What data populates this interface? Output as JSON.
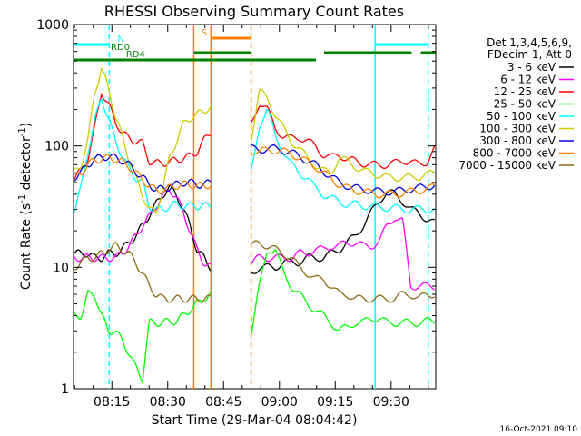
{
  "chart_data": {
    "type": "line",
    "title": "RHESSI Observing Summary Count Rates",
    "xlabel": "Start Time (29-Mar-04 08:04:42)",
    "ylabel_main": "Count Rate (s",
    "ylabel_sup1": "-1",
    "ylabel_mid": " detector",
    "ylabel_sup2": "-1",
    "ylabel_end": ")",
    "yscale": "log",
    "ylim": [
      1,
      1000
    ],
    "xlim_minutes": [
      484.7,
      582.0
    ],
    "xticks": [
      {
        "t": 495,
        "label": "08:15"
      },
      {
        "t": 510,
        "label": "08:30"
      },
      {
        "t": 525,
        "label": "08:45"
      },
      {
        "t": 540,
        "label": "09:00"
      },
      {
        "t": 555,
        "label": "09:15"
      },
      {
        "t": 570,
        "label": "09:30"
      }
    ],
    "yticks": [
      {
        "v": 1,
        "label": "1"
      },
      {
        "v": 10,
        "label": "10"
      },
      {
        "v": 100,
        "label": "100"
      },
      {
        "v": 1000,
        "label": "1000"
      }
    ],
    "legend_header": [
      "Det 1,3,4,5,6,9,",
      "FDecim 1, Att 0"
    ],
    "series": [
      {
        "name": "3 - 6 keV",
        "color": "#000000",
        "pre": [
          13,
          13,
          13,
          12,
          12,
          13,
          13,
          14,
          16,
          18,
          22,
          27,
          33,
          40,
          45,
          40,
          30,
          22,
          14,
          12,
          10
        ],
        "post": [
          9,
          10,
          10,
          10,
          11,
          11,
          11,
          12,
          12,
          12,
          13,
          14,
          16,
          18,
          22,
          28,
          35,
          42,
          40,
          35,
          30,
          28,
          25,
          23
        ]
      },
      {
        "name": "6 - 12 keV",
        "color": "#ff00ff",
        "pre": [
          12,
          12,
          12,
          12,
          12,
          12,
          12,
          13,
          15,
          18,
          22,
          26,
          32,
          38,
          44,
          38,
          28,
          20,
          14,
          11,
          10
        ],
        "post": [
          11,
          12,
          12,
          12,
          12,
          12,
          13,
          13,
          14,
          14,
          15,
          15,
          16,
          16,
          15,
          15,
          16,
          22,
          26,
          24,
          7,
          7,
          7,
          7
        ]
      },
      {
        "name": "12 - 25 keV",
        "color": "#ff0000",
        "pre": [
          55,
          62,
          80,
          140,
          280,
          220,
          160,
          130,
          115,
          110,
          105,
          75,
          72,
          72,
          74,
          76,
          80,
          82,
          90,
          110,
          130
        ],
        "post": [
          150,
          230,
          200,
          140,
          120,
          115,
          118,
          110,
          100,
          85,
          80,
          85,
          78,
          75,
          72,
          70,
          70,
          70,
          72,
          76,
          74,
          70,
          74,
          95
        ]
      },
      {
        "name": "25 - 50 keV",
        "color": "#00ff00",
        "pre": [
          4,
          4,
          6,
          6,
          4,
          3,
          3,
          2.5,
          2,
          1.5,
          1.2,
          3.5,
          3.5,
          3.5,
          3.6,
          3.6,
          4,
          4.5,
          5,
          5.5,
          6
        ],
        "post": [
          3,
          7,
          14,
          14,
          9,
          7,
          6,
          5,
          4.5,
          4,
          3.5,
          3,
          3.2,
          3.5,
          3.5,
          3.8,
          3.8,
          3.5,
          3.5,
          3.5,
          3.5,
          3.5,
          3.6,
          3.6
        ]
      },
      {
        "name": "50 - 100 keV",
        "color": "#00ffff",
        "pre": [
          30,
          45,
          90,
          160,
          250,
          170,
          110,
          85,
          65,
          55,
          50,
          32,
          30,
          30,
          32,
          33,
          32,
          32,
          32,
          32,
          32
        ],
        "post": [
          60,
          150,
          200,
          120,
          90,
          70,
          60,
          55,
          45,
          40,
          37,
          35,
          33,
          33,
          32,
          32,
          31,
          31,
          31,
          30,
          30,
          30,
          30,
          30
        ]
      },
      {
        "name": "100 - 300 keV",
        "color": "#cccc00",
        "pre": [
          60,
          70,
          110,
          280,
          430,
          300,
          180,
          120,
          80,
          55,
          40,
          30,
          28,
          45,
          80,
          110,
          150,
          170,
          180,
          195,
          210
        ],
        "post": [
          120,
          280,
          250,
          180,
          140,
          110,
          95,
          80,
          70,
          62,
          60,
          80,
          75,
          68,
          62,
          60,
          58,
          55,
          55,
          55,
          55,
          56,
          58,
          60
        ]
      },
      {
        "name": "300 - 800 keV",
        "color": "#0000dd",
        "pre": [
          55,
          60,
          70,
          78,
          80,
          82,
          80,
          76,
          70,
          62,
          55,
          48,
          44,
          44,
          46,
          48,
          50,
          50,
          48,
          48,
          50
        ],
        "post": [
          95,
          93,
          95,
          95,
          92,
          88,
          82,
          76,
          70,
          62,
          56,
          50,
          47,
          45,
          44,
          43,
          42,
          42,
          42,
          43,
          44,
          45,
          46,
          48
        ]
      },
      {
        "name": "800 - 7000 keV",
        "color": "#ff8000",
        "pre": [
          55,
          60,
          70,
          76,
          78,
          80,
          78,
          74,
          68,
          60,
          53,
          47,
          43,
          43,
          45,
          47,
          48,
          48,
          47,
          47,
          48
        ],
        "post": [
          92,
          90,
          92,
          92,
          90,
          86,
          80,
          74,
          68,
          60,
          54,
          48,
          45,
          43,
          42,
          41,
          40,
          40,
          40,
          41,
          42,
          43,
          44,
          46
        ]
      },
      {
        "name": "7000 - 15000 keV",
        "color": "#8b6914",
        "pre": [
          10,
          11,
          12,
          12,
          13,
          14,
          15,
          14,
          13,
          11,
          9,
          7,
          6,
          5.5,
          5.5,
          5.5,
          5.5,
          5.5,
          5.5,
          5.5,
          5.5
        ],
        "post": [
          15,
          16,
          15,
          14,
          13,
          12,
          10,
          9,
          8,
          8,
          7,
          6,
          6,
          5.5,
          5.5,
          5.5,
          5.5,
          5.5,
          5.5,
          6,
          6,
          5.5,
          6,
          6
        ]
      }
    ],
    "gap_minutes": [
      521.5,
      532.5
    ],
    "vertical_lines": [
      {
        "t": 494.3,
        "color": "#00ffff",
        "style": "dashed"
      },
      {
        "t": 517.0,
        "color": "#ff8000",
        "style": "solid"
      },
      {
        "t": 521.6,
        "color": "#ff8000",
        "style": "solid"
      },
      {
        "t": 532.4,
        "color": "#ff8000",
        "style": "dashed"
      },
      {
        "t": 565.7,
        "color": "#00ffff",
        "style": "solid"
      },
      {
        "t": 580.0,
        "color": "#00ffff",
        "style": "dashed"
      }
    ],
    "flag_bars": [
      {
        "label": "N",
        "color": "#00ffff",
        "segments": [
          [
            484.7,
            494.3
          ],
          [
            565.7,
            580.0
          ]
        ]
      },
      {
        "label": "S",
        "color": "#ff8000",
        "segments": [
          [
            521.6,
            532.4
          ]
        ]
      },
      {
        "label": "RD0",
        "color": "#008000",
        "segments": [
          [
            517.0,
            532.4
          ],
          [
            552.0,
            575.5
          ],
          [
            578.0,
            582.0
          ]
        ]
      },
      {
        "label": "RD4",
        "color": "#008000",
        "segments": [
          [
            484.7,
            532.4
          ],
          [
            532.4,
            549.8
          ]
        ]
      }
    ],
    "timestamp": "16-Oct-2021 09:10"
  }
}
